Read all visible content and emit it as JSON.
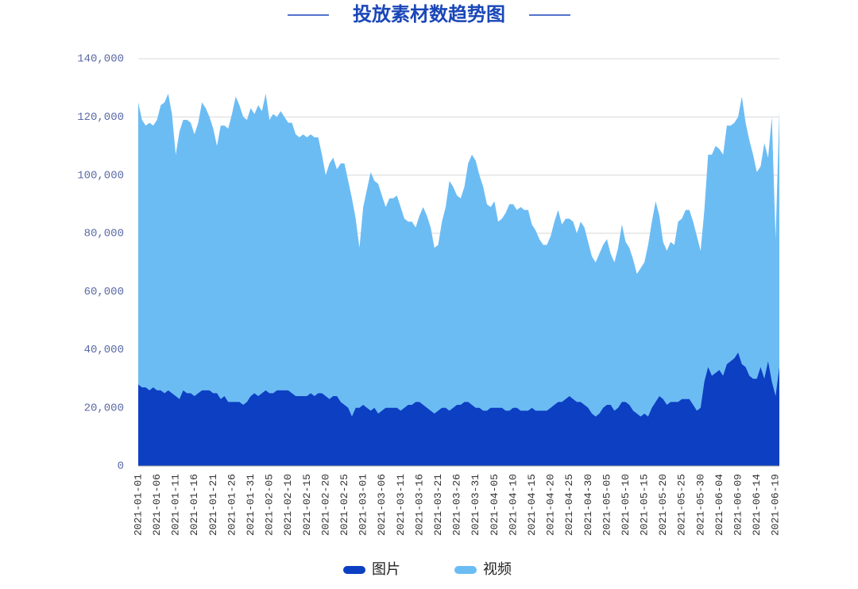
{
  "chart_data": {
    "type": "area",
    "title": "投放素材数趋势图",
    "categories": [
      "2021-01-01",
      null,
      null,
      null,
      null,
      "2021-01-06",
      null,
      null,
      null,
      null,
      "2021-01-11",
      null,
      null,
      null,
      null,
      "2021-01-16",
      null,
      null,
      null,
      null,
      "2021-01-21",
      null,
      null,
      null,
      null,
      "2021-01-26",
      null,
      null,
      null,
      null,
      "2021-01-31",
      null,
      null,
      null,
      null,
      "2021-02-05",
      null,
      null,
      null,
      null,
      "2021-02-10",
      null,
      null,
      null,
      null,
      "2021-02-15",
      null,
      null,
      null,
      null,
      "2021-02-20",
      null,
      null,
      null,
      null,
      "2021-02-25",
      null,
      null,
      null,
      null,
      "2021-03-01",
      null,
      null,
      null,
      null,
      "2021-03-06",
      null,
      null,
      null,
      null,
      "2021-03-11",
      null,
      null,
      null,
      null,
      "2021-03-16",
      null,
      null,
      null,
      null,
      "2021-03-21",
      null,
      null,
      null,
      null,
      "2021-03-26",
      null,
      null,
      null,
      null,
      "2021-03-31",
      null,
      null,
      null,
      null,
      "2021-04-05",
      null,
      null,
      null,
      null,
      "2021-04-10",
      null,
      null,
      null,
      null,
      "2021-04-15",
      null,
      null,
      null,
      null,
      "2021-04-20",
      null,
      null,
      null,
      null,
      "2021-04-25",
      null,
      null,
      null,
      null,
      "2021-04-30",
      null,
      null,
      null,
      null,
      "2021-05-05",
      null,
      null,
      null,
      null,
      "2021-05-10",
      null,
      null,
      null,
      null,
      "2021-05-15",
      null,
      null,
      null,
      null,
      "2021-05-20",
      null,
      null,
      null,
      null,
      "2021-05-25",
      null,
      null,
      null,
      null,
      "2021-05-30",
      null,
      null,
      null,
      null,
      "2021-06-04",
      null,
      null,
      null,
      null,
      "2021-06-09",
      null,
      null,
      null,
      null,
      "2021-06-14",
      null,
      null,
      null,
      null,
      "2021-06-19",
      null
    ],
    "series": [
      {
        "name": "视频",
        "color": "#6cbcf4",
        "values": [
          125000,
          119000,
          117000,
          118000,
          117000,
          119000,
          124000,
          125000,
          128000,
          121000,
          107000,
          115000,
          119000,
          119000,
          118000,
          114000,
          118000,
          125000,
          123000,
          120000,
          116000,
          110000,
          117000,
          117000,
          116000,
          121000,
          127000,
          124000,
          120000,
          119000,
          123000,
          121000,
          124000,
          122000,
          128000,
          119000,
          121000,
          120000,
          122000,
          120000,
          118000,
          118000,
          114000,
          113000,
          114000,
          113000,
          114000,
          113000,
          113000,
          107000,
          100000,
          104000,
          106000,
          102000,
          104000,
          104000,
          98000,
          92000,
          85000,
          75000,
          89000,
          95000,
          101000,
          98000,
          97000,
          93000,
          89000,
          92000,
          92000,
          93000,
          89000,
          85000,
          84000,
          84000,
          82000,
          86000,
          89000,
          86000,
          82000,
          75000,
          76000,
          84000,
          89000,
          98000,
          96000,
          93000,
          92000,
          96000,
          104000,
          107000,
          105000,
          100000,
          96000,
          90000,
          89000,
          91000,
          84000,
          85000,
          87000,
          90000,
          90000,
          88000,
          89000,
          88000,
          88000,
          83000,
          81000,
          78000,
          76000,
          76000,
          79000,
          84000,
          88000,
          83000,
          85000,
          85000,
          84000,
          80000,
          84000,
          82000,
          77000,
          72000,
          70000,
          73000,
          76000,
          78000,
          73000,
          70000,
          75000,
          83000,
          77000,
          75000,
          71000,
          66000,
          68000,
          70000,
          76000,
          84000,
          91000,
          86000,
          77000,
          74000,
          77000,
          76000,
          84000,
          85000,
          88000,
          88000,
          84000,
          79000,
          74000,
          88000,
          107000,
          107000,
          110000,
          109000,
          107000,
          117000,
          117000,
          118000,
          120000,
          127000,
          118000,
          112000,
          107000,
          101000,
          103000,
          111000,
          106000,
          120000,
          78000,
          122000
        ]
      },
      {
        "name": "图片",
        "color": "#0c3fc2",
        "values": [
          28000,
          27000,
          27000,
          26000,
          27000,
          26000,
          26000,
          25000,
          26000,
          25000,
          24000,
          23000,
          26000,
          25000,
          25000,
          24000,
          25000,
          26000,
          26000,
          26000,
          25000,
          25000,
          23000,
          24000,
          22000,
          22000,
          22000,
          22000,
          21000,
          22000,
          24000,
          25000,
          24000,
          25000,
          26000,
          25000,
          25000,
          26000,
          26000,
          26000,
          26000,
          25000,
          24000,
          24000,
          24000,
          24000,
          25000,
          24000,
          25000,
          25000,
          24000,
          23000,
          24000,
          24000,
          22000,
          21000,
          20000,
          17000,
          20000,
          20000,
          21000,
          20000,
          19000,
          20000,
          18000,
          19000,
          20000,
          20000,
          20000,
          20000,
          19000,
          20000,
          21000,
          21000,
          22000,
          22000,
          21000,
          20000,
          19000,
          18000,
          19000,
          20000,
          20000,
          19000,
          20000,
          21000,
          21000,
          22000,
          22000,
          21000,
          20000,
          20000,
          19000,
          19000,
          20000,
          20000,
          20000,
          20000,
          19000,
          19000,
          20000,
          20000,
          19000,
          19000,
          19000,
          20000,
          19000,
          19000,
          19000,
          19000,
          20000,
          21000,
          22000,
          22000,
          23000,
          24000,
          23000,
          22000,
          22000,
          21000,
          20000,
          18000,
          17000,
          18000,
          20000,
          21000,
          21000,
          19000,
          20000,
          22000,
          22000,
          21000,
          19000,
          18000,
          17000,
          18000,
          17000,
          20000,
          22000,
          24000,
          23000,
          21000,
          22000,
          22000,
          22000,
          23000,
          23000,
          23000,
          21000,
          19000,
          20000,
          29000,
          34000,
          31000,
          32000,
          33000,
          31000,
          35000,
          36000,
          37000,
          39000,
          35000,
          34000,
          31000,
          30000,
          30000,
          34000,
          30000,
          36000,
          29000,
          24000,
          34000
        ]
      }
    ],
    "ylim": [
      0,
      140000
    ],
    "yticks": [
      0,
      {
        "value": 20000,
        "label": "20,000"
      },
      {
        "value": 40000,
        "label": "40,000"
      },
      {
        "value": 60000,
        "label": "60,000"
      },
      {
        "value": 80000,
        "label": "80,000"
      },
      {
        "value": 100000,
        "label": "100,000"
      },
      {
        "value": 120000,
        "label": "120,000"
      },
      {
        "value": 140000,
        "label": "140,000"
      }
    ],
    "grid": true,
    "legend": "bottom"
  }
}
